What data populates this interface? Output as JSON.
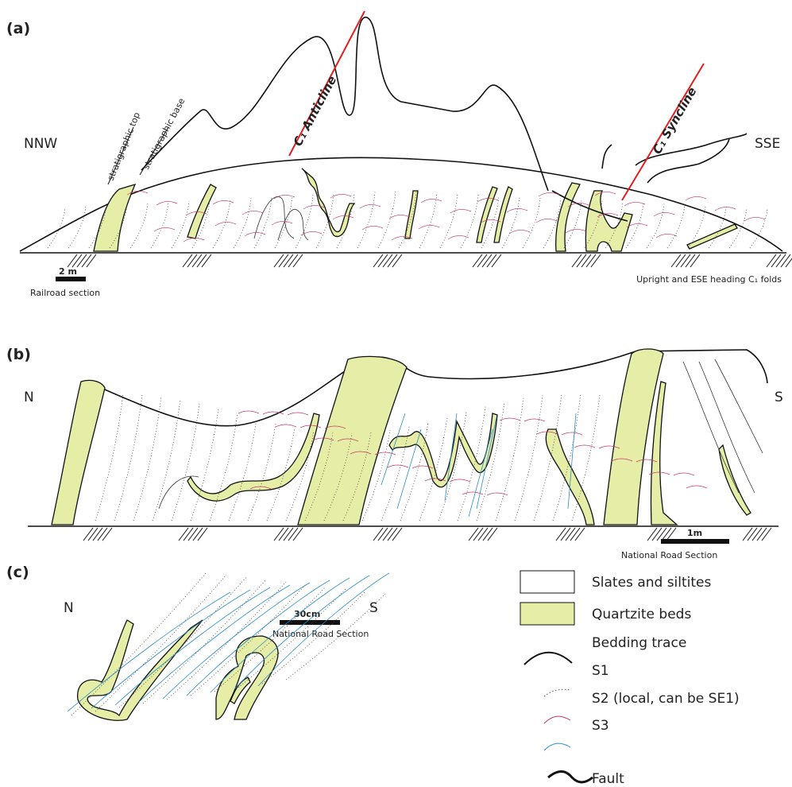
{
  "panels": [
    {
      "label": "(a)",
      "left_label": "NNW",
      "right_label": "SSE",
      "anticline": "C₁ Anticline",
      "syncline": "C₁ Syncline",
      "strat_top": "stratigraphic top",
      "strat_base": "stratigraphic base",
      "scale": "2 m",
      "caption": "Railroad section",
      "note": "Upright and ESE heading C₁ folds"
    },
    {
      "label": "(b)",
      "left_label": "N",
      "right_label": "S",
      "scale": "1m",
      "caption": "National Road Section"
    },
    {
      "label": "(c)",
      "left_label": "N",
      "right_label": "S",
      "scale": "30cm",
      "caption": "National Road Section"
    }
  ],
  "legend": [
    "Slates and siltites",
    "Quartzite beds",
    "Bedding trace",
    "S1",
    "S2 (local, can be SE1)",
    "S3",
    "Fault"
  ]
}
